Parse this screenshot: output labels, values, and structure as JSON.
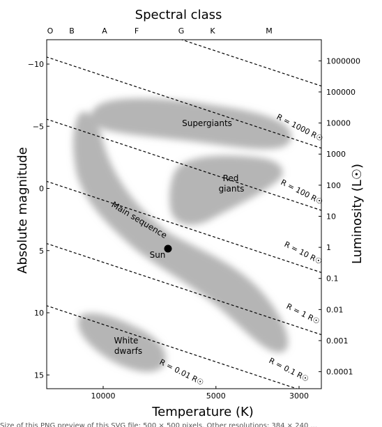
{
  "chart_data": {
    "type": "scatter",
    "title": "Spectral class",
    "spectral_classes": [
      {
        "label": "O",
        "temperature_k": 40000
      },
      {
        "label": "B",
        "temperature_k": 20000
      },
      {
        "label": "A",
        "temperature_k": 9500
      },
      {
        "label": "F",
        "temperature_k": 7000
      },
      {
        "label": "G",
        "temperature_k": 5500
      },
      {
        "label": "K",
        "temperature_k": 4500
      },
      {
        "label": "M",
        "temperature_k": 3300
      }
    ],
    "xlabel": "Temperature (K)",
    "x_axis": {
      "scale": "log",
      "reversed": true,
      "ticks": [
        {
          "value": 10000,
          "label": "10000"
        },
        {
          "value": 5000,
          "label": "5000"
        },
        {
          "value": 3000,
          "label": "3000"
        }
      ]
    },
    "ylabel_left": "Absolute magnitude",
    "y_axis_left": {
      "range": [
        -12.3,
        16.0
      ],
      "inverted": true,
      "ticks": [
        {
          "value": -10,
          "label": "−10"
        },
        {
          "value": -5,
          "label": "−5"
        },
        {
          "value": 0,
          "label": "0"
        },
        {
          "value": 5,
          "label": "5"
        },
        {
          "value": 10,
          "label": "10"
        },
        {
          "value": 15,
          "label": "15"
        }
      ]
    },
    "ylabel_right": "Luminosity (L☉)",
    "y_axis_right": {
      "scale": "log",
      "ticks": [
        {
          "value": 1000000,
          "label": "1000000"
        },
        {
          "value": 100000,
          "label": "100000"
        },
        {
          "value": 10000,
          "label": "10000"
        },
        {
          "value": 1000,
          "label": "1000"
        },
        {
          "value": 100,
          "label": "100"
        },
        {
          "value": 10,
          "label": "10"
        },
        {
          "value": 1,
          "label": "1"
        },
        {
          "value": 0.1,
          "label": "0.1"
        },
        {
          "value": 0.01,
          "label": "0.01"
        },
        {
          "value": 0.001,
          "label": "0.001"
        },
        {
          "value": 0.0001,
          "label": "0.0001"
        }
      ]
    },
    "radius_lines": [
      {
        "label": "R = 1000 R☉",
        "magnitude_at_5000k": -11.05
      },
      {
        "label": "R = 100 R☉",
        "magnitude_at_5000k": -6.05
      },
      {
        "label": "R = 10 R☉",
        "magnitude_at_5000k": -1.05
      },
      {
        "label": "R = 1 R☉",
        "magnitude_at_5000k": 3.95
      },
      {
        "label": "R = 0.1 R☉",
        "magnitude_at_5000k": 8.95
      },
      {
        "label": "R = 0.01 R☉",
        "magnitude_at_5000k": 13.95
      }
    ],
    "regions": [
      {
        "label": "Supergiants"
      },
      {
        "label": "Red giants"
      },
      {
        "label": "Main sequence"
      },
      {
        "label": "White dwarfs"
      }
    ],
    "points": [
      {
        "label": "Sun",
        "temperature_k": 5800,
        "magnitude": 4.8
      }
    ],
    "colors": {
      "region_fill": "#b5b5b5",
      "lines": "#000000"
    },
    "grid": false
  },
  "caption_fragment": "Size of this PNG preview of this SVG file: 500 × 500 pixels. Other resolutions: 384 × 240 ..."
}
